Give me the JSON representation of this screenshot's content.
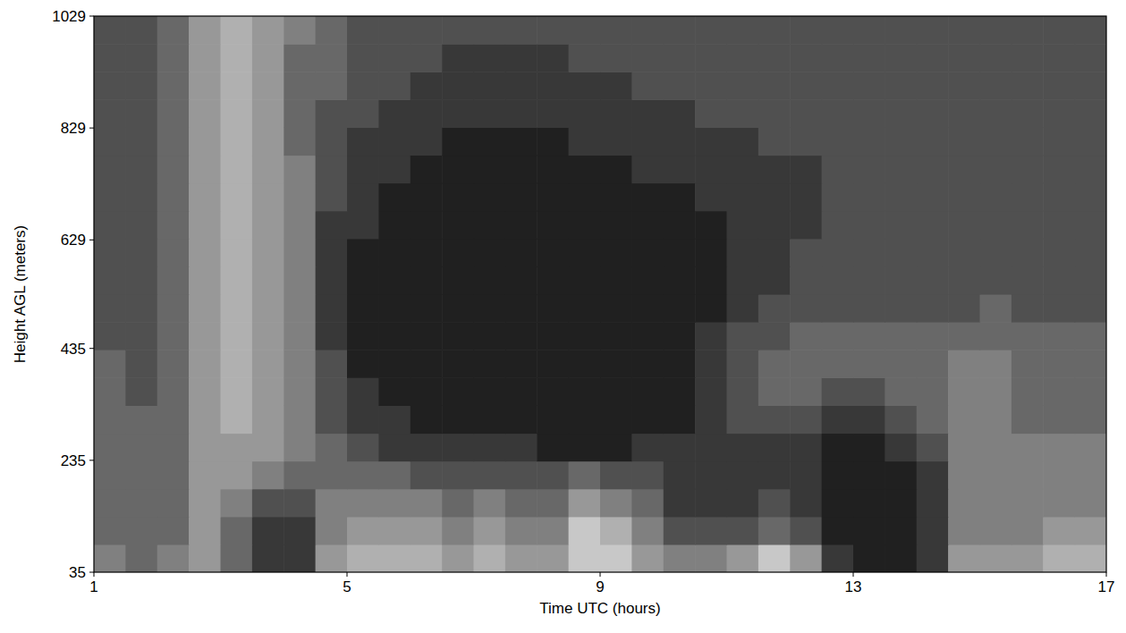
{
  "chart_data": {
    "type": "heatmap",
    "x_label": "Time UTC (hours)",
    "y_label": "Height AGL (meters)",
    "xlim": [
      1,
      17
    ],
    "ylim": [
      35,
      1029
    ],
    "xticks": [
      1,
      5,
      9,
      13,
      17
    ],
    "yticks": [
      35,
      235,
      435,
      629,
      829,
      1029
    ],
    "x": [
      1,
      1.5,
      2,
      2.5,
      3,
      3.5,
      4,
      4.5,
      5,
      5.5,
      6,
      6.5,
      7,
      7.5,
      8,
      8.5,
      9,
      9.5,
      10,
      10.5,
      11,
      11.5,
      12,
      12.5,
      13,
      13.5,
      14,
      14.5,
      15,
      15.5,
      16,
      16.5,
      17
    ],
    "y": [
      35,
      84.7,
      134.4,
      184.1,
      233.8,
      283.5,
      333.2,
      382.9,
      432.6,
      482.3,
      532,
      581.7,
      631.4,
      681.1,
      730.8,
      780.5,
      830.2,
      879.9,
      929.6,
      979.3,
      1029
    ],
    "zlim": [
      0,
      9
    ],
    "cells": [
      [
        5,
        4,
        5,
        6,
        4,
        2,
        2,
        6,
        7,
        7,
        7,
        6,
        7,
        6,
        6,
        8,
        8,
        6,
        5,
        5,
        6,
        8,
        6,
        2,
        1,
        1,
        2,
        6,
        6,
        6,
        7,
        7
      ],
      [
        4,
        4,
        4,
        6,
        4,
        2,
        2,
        5,
        6,
        6,
        6,
        5,
        6,
        5,
        5,
        8,
        7,
        5,
        3,
        3,
        3,
        4,
        3,
        1,
        1,
        1,
        2,
        5,
        5,
        5,
        6,
        6
      ],
      [
        4,
        4,
        4,
        6,
        5,
        3,
        3,
        5,
        5,
        5,
        5,
        4,
        5,
        4,
        4,
        6,
        5,
        4,
        2,
        2,
        2,
        3,
        2,
        1,
        1,
        1,
        2,
        5,
        5,
        5,
        5,
        5
      ],
      [
        4,
        4,
        4,
        6,
        6,
        5,
        4,
        4,
        4,
        4,
        3,
        3,
        3,
        3,
        3,
        4,
        3,
        3,
        2,
        2,
        2,
        2,
        2,
        1,
        1,
        1,
        2,
        5,
        5,
        5,
        5,
        5
      ],
      [
        4,
        4,
        4,
        6,
        6,
        6,
        5,
        4,
        3,
        2,
        2,
        2,
        2,
        2,
        1,
        1,
        1,
        2,
        2,
        2,
        2,
        2,
        2,
        1,
        1,
        2,
        3,
        5,
        5,
        5,
        5,
        5
      ],
      [
        4,
        4,
        4,
        6,
        7,
        6,
        5,
        3,
        2,
        2,
        1,
        1,
        1,
        1,
        1,
        1,
        1,
        1,
        1,
        2,
        3,
        3,
        3,
        2,
        2,
        3,
        4,
        5,
        5,
        4,
        4,
        4
      ],
      [
        4,
        3,
        4,
        6,
        7,
        6,
        5,
        3,
        2,
        1,
        1,
        1,
        1,
        1,
        1,
        1,
        1,
        1,
        1,
        2,
        3,
        4,
        4,
        3,
        3,
        4,
        4,
        5,
        5,
        4,
        4,
        4
      ],
      [
        4,
        3,
        4,
        6,
        7,
        6,
        5,
        3,
        1,
        1,
        1,
        1,
        1,
        1,
        1,
        1,
        1,
        1,
        1,
        2,
        3,
        4,
        4,
        4,
        4,
        4,
        4,
        5,
        5,
        4,
        4,
        4
      ],
      [
        3,
        3,
        4,
        6,
        7,
        6,
        5,
        2,
        1,
        1,
        1,
        1,
        1,
        1,
        1,
        1,
        1,
        1,
        1,
        2,
        3,
        3,
        4,
        4,
        4,
        4,
        4,
        4,
        4,
        4,
        4,
        4
      ],
      [
        3,
        3,
        4,
        6,
        7,
        6,
        5,
        2,
        1,
        1,
        1,
        1,
        1,
        1,
        1,
        1,
        1,
        1,
        1,
        1,
        2,
        3,
        3,
        3,
        3,
        3,
        3,
        3,
        4,
        3,
        3,
        3
      ],
      [
        3,
        3,
        4,
        6,
        7,
        6,
        5,
        2,
        1,
        1,
        1,
        1,
        1,
        1,
        1,
        1,
        1,
        1,
        1,
        1,
        2,
        2,
        3,
        3,
        3,
        3,
        3,
        3,
        3,
        3,
        3,
        3
      ],
      [
        3,
        3,
        4,
        6,
        7,
        6,
        5,
        2,
        1,
        1,
        1,
        1,
        1,
        1,
        1,
        1,
        1,
        1,
        1,
        1,
        2,
        2,
        3,
        3,
        3,
        3,
        3,
        3,
        3,
        3,
        3,
        3
      ],
      [
        3,
        3,
        4,
        6,
        7,
        6,
        5,
        2,
        2,
        1,
        1,
        1,
        1,
        1,
        1,
        1,
        1,
        1,
        1,
        1,
        2,
        2,
        2,
        3,
        3,
        3,
        3,
        3,
        3,
        3,
        3,
        3
      ],
      [
        3,
        3,
        4,
        6,
        7,
        6,
        5,
        3,
        2,
        1,
        1,
        1,
        1,
        1,
        1,
        1,
        1,
        1,
        1,
        2,
        2,
        2,
        2,
        3,
        3,
        3,
        3,
        3,
        3,
        3,
        3,
        3
      ],
      [
        3,
        3,
        4,
        6,
        7,
        6,
        5,
        3,
        2,
        2,
        1,
        1,
        1,
        1,
        1,
        1,
        1,
        2,
        2,
        2,
        2,
        2,
        2,
        3,
        3,
        3,
        3,
        3,
        3,
        3,
        3,
        3
      ],
      [
        3,
        3,
        4,
        6,
        7,
        6,
        4,
        3,
        2,
        2,
        2,
        1,
        1,
        1,
        1,
        2,
        2,
        2,
        2,
        2,
        2,
        3,
        3,
        3,
        3,
        3,
        3,
        3,
        3,
        3,
        3,
        3
      ],
      [
        3,
        3,
        4,
        6,
        7,
        6,
        4,
        3,
        3,
        2,
        2,
        2,
        2,
        2,
        2,
        2,
        2,
        2,
        2,
        3,
        3,
        3,
        3,
        3,
        3,
        3,
        3,
        3,
        3,
        3,
        3,
        3
      ],
      [
        3,
        3,
        4,
        6,
        7,
        6,
        4,
        4,
        3,
        3,
        2,
        2,
        2,
        2,
        2,
        2,
        2,
        3,
        3,
        3,
        3,
        3,
        3,
        3,
        3,
        3,
        3,
        3,
        3,
        3,
        3,
        3
      ],
      [
        3,
        3,
        4,
        6,
        7,
        6,
        4,
        4,
        3,
        3,
        3,
        2,
        2,
        2,
        2,
        3,
        3,
        3,
        3,
        3,
        3,
        3,
        3,
        3,
        3,
        3,
        3,
        3,
        3,
        3,
        3,
        3
      ],
      [
        3,
        3,
        4,
        6,
        7,
        6,
        5,
        4,
        3,
        3,
        3,
        3,
        3,
        3,
        3,
        3,
        3,
        3,
        3,
        3,
        3,
        3,
        3,
        3,
        3,
        3,
        3,
        3,
        3,
        3,
        3,
        3
      ]
    ]
  }
}
